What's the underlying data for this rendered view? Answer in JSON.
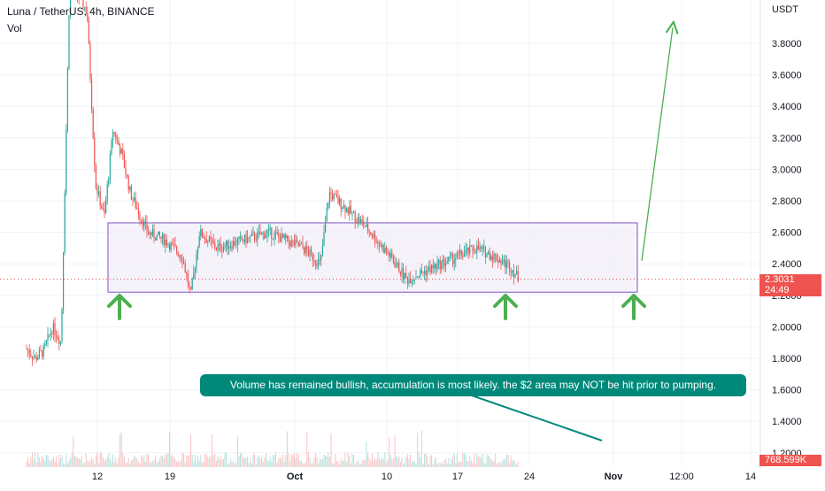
{
  "header": {
    "symbol_line": "Luna / TetherUS, 4h, BINANCE",
    "vol_label": "Vol"
  },
  "axis": {
    "currency": "USDT",
    "price_ticks": [
      "3.8000",
      "3.6000",
      "3.4000",
      "3.2000",
      "3.0000",
      "2.8000",
      "2.6000",
      "2.4000",
      "2.2000",
      "2.0000",
      "1.8000",
      "1.6000",
      "1.4000",
      "1.2000"
    ],
    "time_ticks": [
      "12",
      "19",
      "Oct",
      "10",
      "17",
      "24",
      "Nov",
      "12:00",
      "14"
    ]
  },
  "badges": {
    "price": "2.3031",
    "countdown": "24:49",
    "volume": "768.599K"
  },
  "annotation": {
    "text": "Volume has remained bullish, accumulation is most likely. the $2 area may NOT be hit prior to pumping."
  },
  "colors": {
    "up": "#26a69a",
    "down": "#ef5350",
    "box_stroke": "#7e57c2",
    "box_fill": "#ede7f6",
    "arrow": "#4caf50",
    "callout": "#00897b",
    "price_line": "#ef5350"
  },
  "chart_data": {
    "type": "candlestick",
    "title": "Luna / TetherUS, 4h, BINANCE",
    "y_unit": "USDT",
    "ylim": [
      1.15,
      3.95
    ],
    "x_ticks": [
      "12",
      "19",
      "Oct",
      "10",
      "17",
      "24",
      "Nov",
      "12:00",
      "14"
    ],
    "price_path": [
      {
        "t": "Sep 6",
        "p": 1.86
      },
      {
        "t": "Sep 7",
        "p": 1.8
      },
      {
        "t": "Sep 8",
        "p": 1.85
      },
      {
        "t": "Sep 9",
        "p": 2.0
      },
      {
        "t": "Sep 10",
        "p": 1.9
      },
      {
        "t": "Sep 11",
        "p": 4.2
      },
      {
        "t": "Sep 13",
        "p": 4.0
      },
      {
        "t": "Sep 14",
        "p": 2.9
      },
      {
        "t": "Sep 15",
        "p": 2.7
      },
      {
        "t": "Sep 16",
        "p": 3.25
      },
      {
        "t": "Sep 17",
        "p": 3.1
      },
      {
        "t": "Sep 18",
        "p": 2.85
      },
      {
        "t": "Sep 20",
        "p": 2.6
      },
      {
        "t": "Sep 22",
        "p": 2.55
      },
      {
        "t": "Sep 24",
        "p": 2.45
      },
      {
        "t": "Sep 25",
        "p": 2.2
      },
      {
        "t": "Sep 26",
        "p": 2.6
      },
      {
        "t": "Sep 28",
        "p": 2.5
      },
      {
        "t": "Oct 1",
        "p": 2.55
      },
      {
        "t": "Oct 4",
        "p": 2.6
      },
      {
        "t": "Oct 8",
        "p": 2.5
      },
      {
        "t": "Oct 10",
        "p": 2.4
      },
      {
        "t": "Oct 11",
        "p": 2.85
      },
      {
        "t": "Oct 13",
        "p": 2.75
      },
      {
        "t": "Oct 15",
        "p": 2.65
      },
      {
        "t": "Oct 18",
        "p": 2.45
      },
      {
        "t": "Oct 20",
        "p": 2.3
      },
      {
        "t": "Oct 22",
        "p": 2.35
      },
      {
        "t": "Oct 26",
        "p": 2.45
      },
      {
        "t": "Oct 28",
        "p": 2.5
      },
      {
        "t": "Oct 30",
        "p": 2.45
      },
      {
        "t": "Nov 1",
        "p": 2.38
      },
      {
        "t": "Nov 2",
        "p": 2.3
      }
    ],
    "last_price": 2.3031,
    "last_volume": "768.599K",
    "range_box": {
      "low": 2.22,
      "high": 2.66
    },
    "projection": {
      "from": 2.42,
      "to": 3.9
    }
  }
}
